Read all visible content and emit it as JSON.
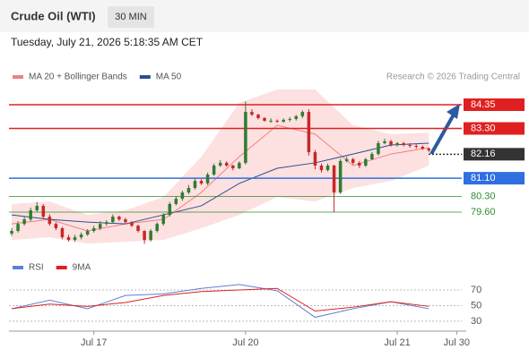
{
  "chart_data": [
    {
      "type": "candlestick",
      "title": "Crude Oil (WTI)",
      "timeframe": "30 MIN",
      "subtitle": "Tuesday, July 21, 2026 5:18:35 AM CET",
      "credit": "Research © 2026 Trading Central",
      "up_color": "#2e7d32",
      "down_color": "#c62828",
      "x": [
        0,
        1,
        2,
        3,
        4,
        5,
        6,
        7,
        8,
        9,
        10,
        11,
        12,
        13,
        14,
        15,
        16,
        17,
        18,
        19,
        20,
        21,
        22,
        23,
        24,
        25,
        26,
        27,
        28,
        29,
        30,
        31,
        32,
        33,
        34,
        35,
        36,
        37,
        38,
        39,
        40,
        41,
        42,
        43,
        44,
        45,
        46,
        47,
        48,
        49,
        50,
        51,
        52,
        53,
        54,
        55,
        56,
        57,
        58,
        59,
        60,
        61,
        62,
        63,
        64,
        65,
        66
      ],
      "open": [
        78.65,
        78.77,
        79.08,
        79.28,
        79.68,
        79.88,
        79.4,
        79.08,
        78.89,
        78.49,
        78.37,
        78.49,
        78.61,
        78.77,
        78.89,
        79.08,
        79.16,
        79.4,
        79.28,
        79.16,
        79.0,
        78.77,
        78.37,
        78.77,
        79.08,
        79.48,
        79.96,
        80.19,
        80.47,
        80.67,
        80.98,
        80.87,
        81.26,
        81.66,
        81.78,
        81.66,
        81.54,
        81.78,
        84.03,
        83.91,
        83.76,
        83.64,
        83.64,
        83.6,
        83.68,
        83.72,
        83.84,
        84.03,
        82.25,
        81.66,
        81.46,
        81.66,
        80.47,
        81.86,
        81.94,
        81.78,
        81.66,
        81.94,
        82.17,
        82.65,
        82.73,
        82.57,
        82.65,
        82.57,
        82.53,
        82.49,
        82.41
      ],
      "high": [
        78.9,
        79.2,
        79.4,
        79.8,
        80.05,
        79.95,
        79.5,
        79.15,
        78.95,
        78.6,
        78.6,
        78.7,
        78.85,
        79.0,
        79.2,
        79.25,
        79.5,
        79.45,
        79.35,
        79.2,
        79.05,
        78.8,
        78.85,
        79.15,
        79.55,
        80.05,
        80.3,
        80.55,
        80.8,
        81.1,
        81.05,
        81.35,
        81.75,
        81.9,
        81.85,
        81.7,
        81.85,
        84.5,
        84.15,
        83.95,
        83.8,
        83.75,
        83.7,
        83.75,
        83.8,
        83.9,
        84.1,
        84.15,
        82.35,
        81.75,
        81.75,
        81.7,
        81.95,
        82.05,
        82.0,
        81.85,
        82.0,
        82.25,
        82.75,
        82.85,
        82.8,
        82.7,
        82.7,
        82.65,
        82.6,
        82.55,
        82.45
      ],
      "low": [
        78.55,
        78.7,
        79.0,
        79.2,
        79.6,
        79.3,
        79.0,
        78.8,
        78.4,
        78.3,
        78.3,
        78.4,
        78.55,
        78.7,
        78.8,
        79.0,
        79.1,
        79.2,
        79.1,
        78.95,
        78.7,
        78.2,
        78.3,
        78.7,
        79.0,
        79.4,
        79.9,
        80.1,
        80.4,
        80.6,
        80.8,
        80.8,
        81.2,
        81.6,
        81.6,
        81.45,
        81.5,
        81.7,
        83.85,
        83.7,
        83.6,
        83.55,
        83.55,
        83.55,
        83.6,
        83.65,
        83.75,
        82.1,
        81.5,
        81.35,
        81.4,
        79.6,
        80.4,
        81.8,
        81.7,
        81.55,
        81.6,
        81.9,
        82.1,
        82.6,
        82.5,
        82.5,
        82.5,
        82.45,
        82.4,
        82.35,
        82.25
      ],
      "close": [
        78.77,
        79.08,
        79.28,
        79.68,
        79.88,
        79.4,
        79.08,
        78.89,
        78.49,
        78.37,
        78.49,
        78.61,
        78.77,
        78.89,
        79.08,
        79.16,
        79.4,
        79.28,
        79.16,
        79.0,
        78.77,
        78.37,
        78.77,
        79.08,
        79.48,
        79.96,
        80.19,
        80.47,
        80.67,
        80.98,
        80.87,
        81.26,
        81.66,
        81.78,
        81.66,
        81.54,
        81.78,
        84.03,
        83.91,
        83.76,
        83.64,
        83.64,
        83.6,
        83.68,
        83.72,
        83.84,
        84.03,
        82.25,
        81.66,
        81.46,
        81.66,
        80.47,
        81.86,
        81.94,
        81.78,
        81.66,
        81.94,
        82.17,
        82.65,
        82.73,
        82.57,
        82.65,
        82.57,
        82.53,
        82.49,
        82.41,
        82.33
      ],
      "series": [
        {
          "name": "MA 20 + Bollinger Bands",
          "color": "#f08080",
          "band_color": "#fde0e0",
          "x": [
            0,
            6,
            12,
            18,
            24,
            30,
            36,
            42,
            48,
            54,
            60,
            66
          ],
          "values": [
            79.08,
            79.28,
            78.77,
            79.08,
            79.28,
            80.47,
            82.05,
            83.44,
            83.05,
            81.66,
            82.17,
            82.45
          ],
          "upper": [
            79.96,
            80.07,
            79.48,
            79.68,
            80.27,
            82.05,
            84.43,
            85.02,
            85.02,
            83.44,
            83.05,
            83.12
          ],
          "lower": [
            78.37,
            78.49,
            78.21,
            78.29,
            78.37,
            78.89,
            79.48,
            80.27,
            80.07,
            80.67,
            80.98,
            81.66
          ]
        },
        {
          "name": "MA 50",
          "color": "#2c4f8c",
          "x": [
            0,
            6,
            12,
            18,
            24,
            30,
            36,
            42,
            48,
            54,
            60,
            66
          ],
          "values": [
            79.48,
            79.28,
            79.16,
            79.08,
            79.48,
            79.88,
            80.87,
            81.54,
            81.78,
            82.17,
            82.57,
            82.65
          ]
        }
      ],
      "levels": [
        {
          "value": 84.35,
          "color": "#e02020"
        },
        {
          "value": 83.3,
          "label": "83.30",
          "color": "#e02020"
        },
        {
          "value": 82.16,
          "color": "#333333"
        },
        {
          "value": 81.1,
          "label": "81.10",
          "color": "#2f6fe0"
        },
        {
          "value": 80.3,
          "label": "80.30",
          "color": "#2e8b2e"
        },
        {
          "value": 79.6,
          "label": "79.60",
          "color": "#2e8b2e"
        }
      ],
      "xlim": [
        -0.43,
        71.2
      ],
      "xticks": [
        {
          "value": 13,
          "label": "Jul 17"
        },
        {
          "value": 37,
          "label": "Jul 20"
        },
        {
          "value": 61,
          "label": "Jul 21"
        },
        {
          "value": 70.4,
          "label": "Jul 30"
        }
      ],
      "ylim": [
        77.9,
        85.22
      ],
      "grid": false
    },
    {
      "type": "line",
      "series": [
        {
          "name": "RSI",
          "color": "#5b7fd6",
          "x": [
            0,
            6,
            12,
            18,
            24,
            30,
            36,
            42,
            48,
            54,
            60,
            66
          ],
          "values": [
            46,
            57,
            46,
            63,
            65,
            72,
            77,
            69,
            35,
            46,
            55,
            46
          ]
        },
        {
          "name": "9MA",
          "color": "#e02020",
          "x": [
            0,
            6,
            12,
            18,
            24,
            30,
            36,
            42,
            48,
            54,
            60,
            66
          ],
          "values": [
            46,
            52,
            49,
            54,
            63,
            68,
            70,
            72,
            43,
            48,
            55,
            49
          ]
        }
      ],
      "xlim": [
        -0.43,
        71.2
      ],
      "ylim": [
        23,
        80.3
      ],
      "yticks": [
        70,
        50,
        30
      ],
      "grid": true
    }
  ]
}
